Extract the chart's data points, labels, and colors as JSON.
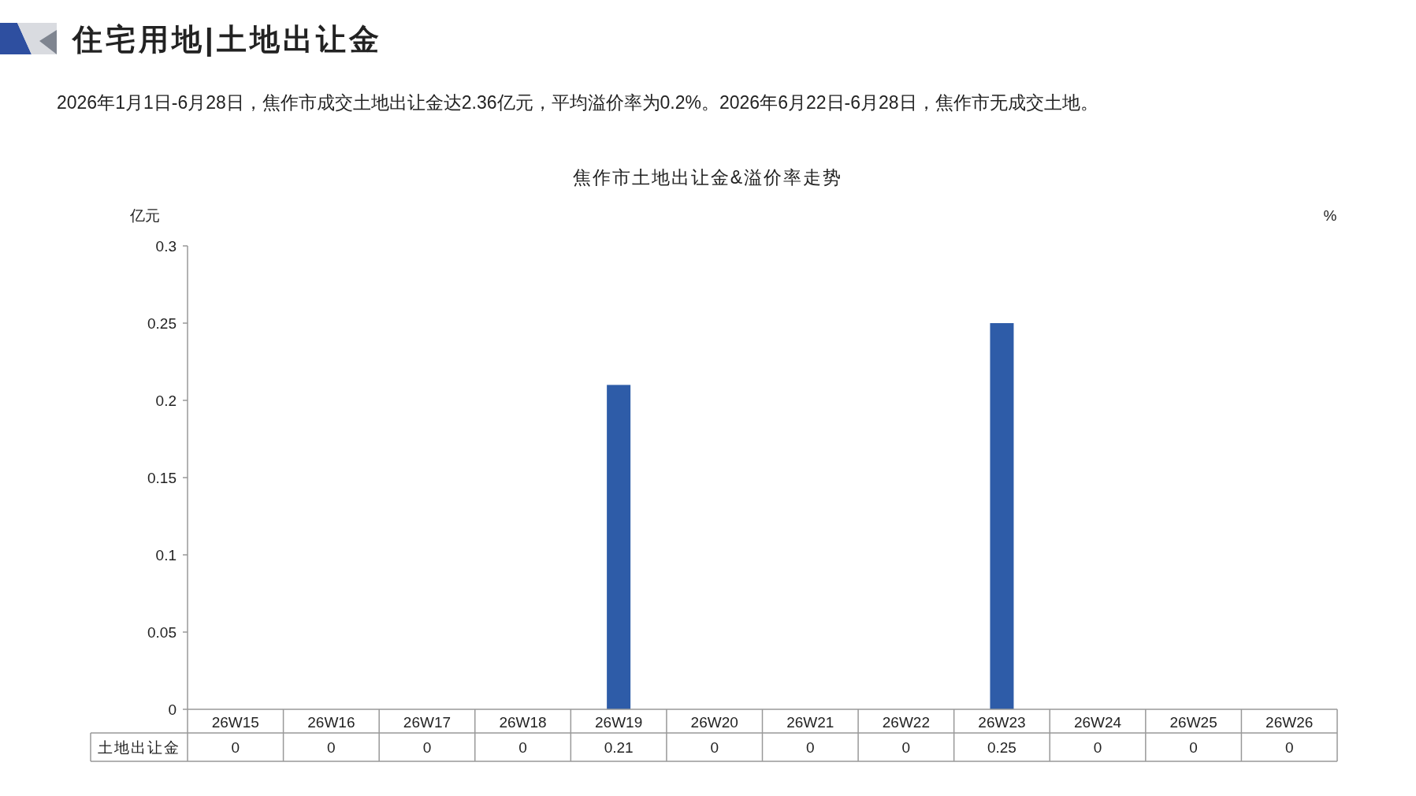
{
  "chart_data": {
    "type": "bar",
    "title": "焦作市土地出让金&溢价率走势",
    "annotations": [
      "住宅用地|土地出让金",
      "2026年1月1日-6月28日，焦作市成交土地出让金达2.36亿元，平均溢价率为0.2%。2026年6月22日-6月28日，焦作市无成交土地。"
    ],
    "ylabel": "亿元",
    "y2label": "%",
    "categories": [
      "26W15",
      "26W16",
      "26W17",
      "26W18",
      "26W19",
      "26W20",
      "26W21",
      "26W22",
      "26W23",
      "26W24",
      "26W25",
      "26W26"
    ],
    "series": [
      {
        "name": "土地出让金",
        "color": "#2e5ca8",
        "values": [
          0,
          0,
          0,
          0,
          0.21,
          0,
          0,
          0,
          0.25,
          0,
          0,
          0
        ]
      }
    ],
    "ylim": [
      0,
      0.3
    ],
    "yticks": [
      0,
      0.05,
      0.1,
      0.15,
      0.2,
      0.25,
      0.3
    ],
    "data_labels": true,
    "grid": false
  }
}
